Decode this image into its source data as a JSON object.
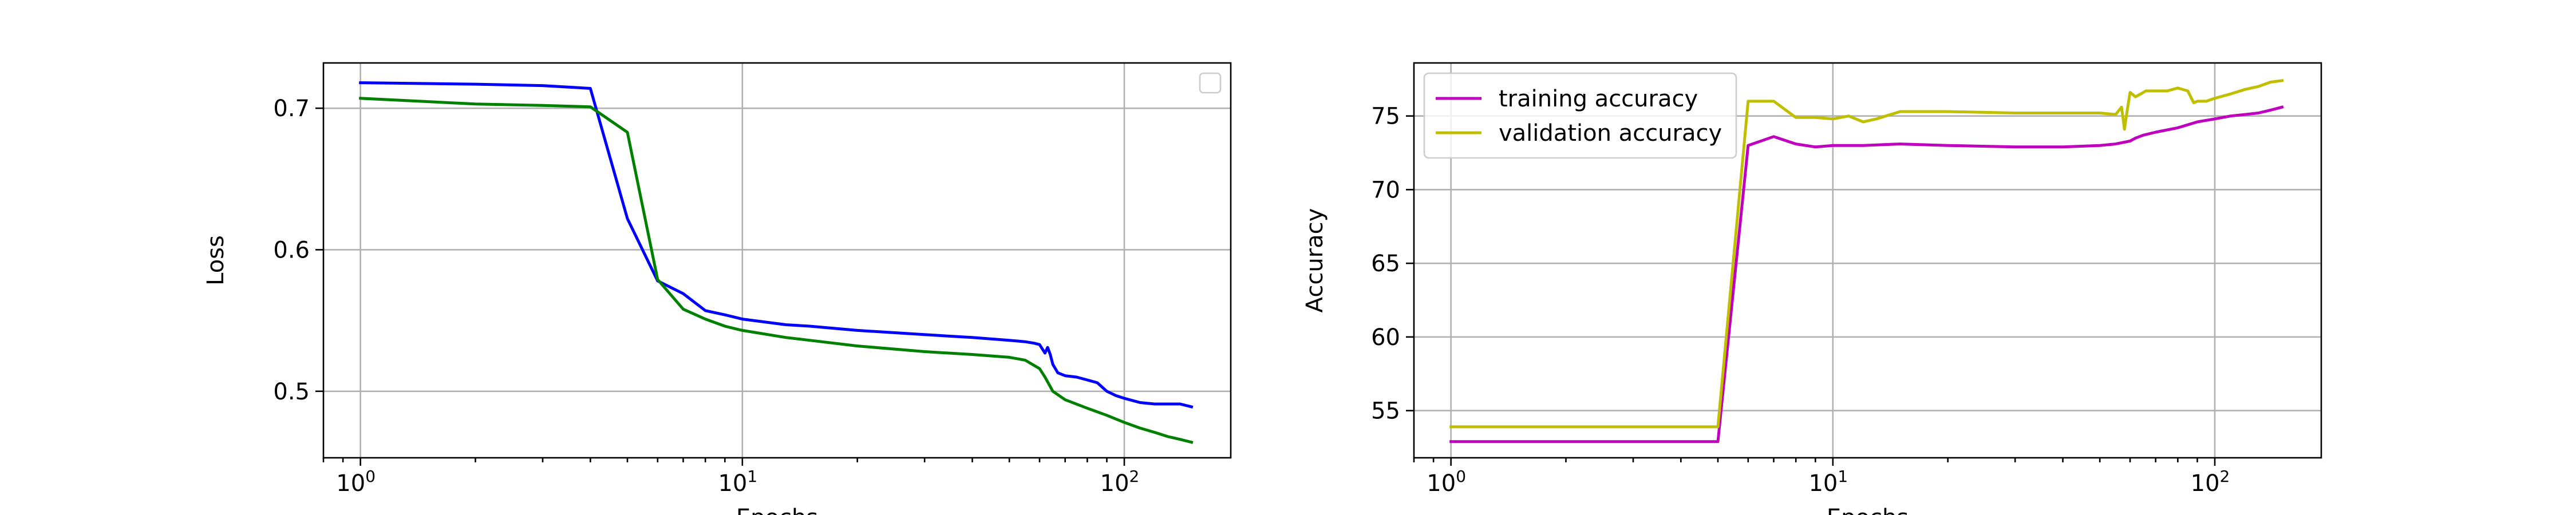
{
  "chart_data": [
    {
      "type": "line",
      "title": "",
      "xlabel": "Epochs",
      "ylabel": "Loss",
      "xscale": "log",
      "xlim": [
        0.8,
        190
      ],
      "ylim": [
        0.453,
        0.732
      ],
      "x_ticks": [
        {
          "value": 1,
          "base": "10",
          "exp": "0"
        },
        {
          "value": 10,
          "base": "10",
          "exp": "1"
        },
        {
          "value": 100,
          "base": "10",
          "exp": "2"
        }
      ],
      "y_ticks": [
        {
          "value": 0.5,
          "label": "0.5"
        },
        {
          "value": 0.6,
          "label": "0.6"
        },
        {
          "value": 0.7,
          "label": "0.7"
        }
      ],
      "grid": true,
      "legend": {
        "position": "upper right",
        "entries": []
      },
      "series": [
        {
          "color": "#0000ff",
          "x": [
            1,
            2,
            3,
            4,
            5,
            6,
            7,
            8,
            9,
            10,
            13,
            15,
            20,
            30,
            40,
            50,
            55,
            58,
            60,
            62,
            63,
            64,
            65,
            67,
            70,
            75,
            80,
            85,
            90,
            95,
            100,
            110,
            120,
            130,
            140,
            150
          ],
          "y": [
            0.718,
            0.717,
            0.716,
            0.714,
            0.622,
            0.578,
            0.569,
            0.557,
            0.554,
            0.551,
            0.547,
            0.546,
            0.543,
            0.54,
            0.538,
            0.536,
            0.535,
            0.534,
            0.533,
            0.527,
            0.531,
            0.526,
            0.519,
            0.513,
            0.511,
            0.51,
            0.508,
            0.506,
            0.5,
            0.497,
            0.495,
            0.492,
            0.491,
            0.491,
            0.491,
            0.489
          ]
        },
        {
          "color": "#008000",
          "x": [
            1,
            2,
            3,
            4,
            5,
            6,
            7,
            8,
            9,
            10,
            13,
            15,
            20,
            30,
            40,
            50,
            55,
            60,
            62,
            65,
            70,
            80,
            90,
            100,
            110,
            120,
            130,
            140,
            150
          ],
          "y": [
            0.707,
            0.703,
            0.702,
            0.701,
            0.683,
            0.579,
            0.558,
            0.551,
            0.546,
            0.543,
            0.538,
            0.536,
            0.532,
            0.528,
            0.526,
            0.524,
            0.522,
            0.516,
            0.51,
            0.5,
            0.494,
            0.488,
            0.483,
            0.478,
            0.474,
            0.471,
            0.468,
            0.466,
            0.464
          ]
        }
      ]
    },
    {
      "type": "line",
      "title": "",
      "xlabel": "Epochs",
      "ylabel": "Accuracy",
      "xscale": "log",
      "xlim": [
        0.8,
        190
      ],
      "ylim": [
        51.8,
        78.6
      ],
      "x_ticks": [
        {
          "value": 1,
          "base": "10",
          "exp": "0"
        },
        {
          "value": 10,
          "base": "10",
          "exp": "1"
        },
        {
          "value": 100,
          "base": "10",
          "exp": "2"
        }
      ],
      "y_ticks": [
        {
          "value": 55,
          "label": "55"
        },
        {
          "value": 60,
          "label": "60"
        },
        {
          "value": 65,
          "label": "65"
        },
        {
          "value": 70,
          "label": "70"
        },
        {
          "value": 75,
          "label": "75"
        }
      ],
      "grid": true,
      "legend": {
        "position": "upper left",
        "entries": [
          "training accuracy",
          "validation accuracy"
        ]
      },
      "series": [
        {
          "name": "training accuracy",
          "color": "#bf00bf",
          "x": [
            1,
            2,
            3,
            4,
            5,
            6,
            7,
            8,
            9,
            10,
            12,
            15,
            20,
            30,
            40,
            50,
            55,
            60,
            62,
            65,
            70,
            80,
            90,
            100,
            110,
            120,
            130,
            140,
            150
          ],
          "y": [
            52.9,
            52.9,
            52.9,
            52.9,
            52.9,
            73.0,
            73.6,
            73.1,
            72.9,
            73.0,
            73.0,
            73.1,
            73.0,
            72.9,
            72.9,
            73.0,
            73.1,
            73.3,
            73.5,
            73.7,
            73.9,
            74.2,
            74.6,
            74.8,
            75.0,
            75.1,
            75.2,
            75.4,
            75.6
          ]
        },
        {
          "name": "validation accuracy",
          "color": "#bfbf00",
          "x": [
            1,
            2,
            3,
            4,
            5,
            6,
            7,
            8,
            9,
            10,
            11,
            12,
            13,
            15,
            20,
            30,
            40,
            50,
            55,
            57,
            58,
            59,
            60,
            62,
            64,
            66,
            70,
            75,
            80,
            85,
            88,
            90,
            95,
            100,
            110,
            120,
            130,
            140,
            150
          ],
          "y": [
            53.9,
            53.9,
            53.9,
            53.9,
            53.9,
            76.0,
            76.0,
            74.9,
            74.9,
            74.8,
            75.0,
            74.6,
            74.8,
            75.3,
            75.3,
            75.2,
            75.2,
            75.2,
            75.1,
            75.6,
            74.1,
            75.4,
            76.6,
            76.3,
            76.5,
            76.7,
            76.7,
            76.7,
            76.9,
            76.7,
            75.9,
            76.0,
            76.0,
            76.2,
            76.5,
            76.8,
            77.0,
            77.3,
            77.4
          ]
        }
      ]
    }
  ]
}
